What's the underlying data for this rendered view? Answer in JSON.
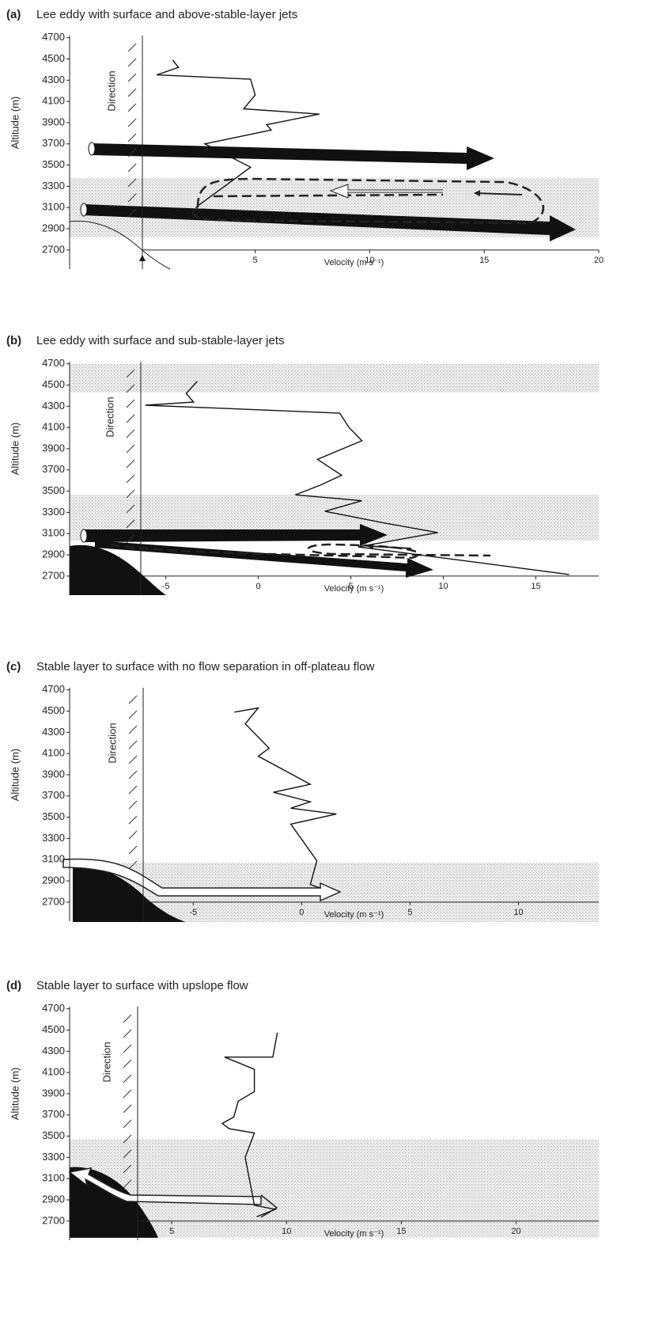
{
  "chart_data": [
    {
      "type": "line",
      "panel": "(a)",
      "title": "Lee eddy with surface and above-stable-layer jets",
      "y_label": "Altitude (m)",
      "x_label": "Velocity (m s⁻¹)",
      "annotation": "Direction",
      "ylim": [
        2520,
        4720
      ],
      "yticks": [
        2700,
        2900,
        3100,
        3300,
        3500,
        3700,
        3900,
        4100,
        4300,
        4500,
        4700
      ],
      "xlim": [
        -3.1,
        20
      ],
      "xticks": [
        5,
        10,
        15,
        20
      ],
      "series": [
        {
          "color": "#111111",
          "x": [
            1.4,
            1.65,
            0.7,
            4.8,
            5.0,
            4.5,
            7.8,
            5.5,
            5.7,
            2.8,
            4.8,
            2.4
          ],
          "values": [
            4490,
            4420,
            4350,
            4310,
            4160,
            4030,
            3980,
            3880,
            3830,
            3700,
            3480,
            3100
          ]
        }
      ]
    },
    {
      "type": "line",
      "panel": "(b)",
      "title": "Lee eddy with surface and sub-stable-layer jets",
      "y_label": "Altitude (m)",
      "x_label": "Velocity (m s⁻¹)",
      "annotation": "Direction",
      "ylim": [
        2520,
        4720
      ],
      "yticks": [
        2700,
        2900,
        3100,
        3300,
        3500,
        3700,
        3900,
        4100,
        4300,
        4500,
        4700
      ],
      "xlim": [
        -10.2,
        18.4
      ],
      "xticks": [
        -5,
        0,
        5,
        10,
        15
      ],
      "series": [
        {
          "color": "#111111",
          "x": [
            -3.3,
            -3.9,
            -3.5,
            -6.1,
            4.4,
            4.9,
            5.6,
            3.2,
            4.5,
            3.4,
            2.0,
            5.6,
            3.6,
            6.8,
            9.7,
            5.4,
            16.8
          ],
          "values": [
            4535,
            4420,
            4340,
            4310,
            4235,
            4100,
            3975,
            3800,
            3650,
            3560,
            3465,
            3410,
            3310,
            3200,
            3110,
            2975,
            2715
          ]
        }
      ]
    },
    {
      "type": "line",
      "panel": "(c)",
      "title": "Stable layer to surface with no flow separation in off-plateau flow",
      "y_label": "Altitude (m)",
      "x_label": "Velocity (m s⁻¹)",
      "annotation": "Direction",
      "ylim": [
        2520,
        4720
      ],
      "yticks": [
        2700,
        2900,
        3100,
        3300,
        3500,
        3700,
        3900,
        4100,
        4300,
        4500,
        4700
      ],
      "xlim": [
        -10.7,
        13.7
      ],
      "xticks": [
        -5,
        0,
        5,
        10
      ],
      "series": [
        {
          "color": "#111111",
          "x": [
            -3.1,
            -2.0,
            -2.6,
            -1.5,
            -2.0,
            0.4,
            -1.3,
            0.4,
            -0.5,
            1.6,
            -0.5,
            0.7,
            0.4,
            0.9
          ],
          "values": [
            4490,
            4530,
            4380,
            4150,
            4075,
            3810,
            3735,
            3645,
            3585,
            3530,
            3435,
            3090,
            2865,
            2830
          ]
        }
      ]
    },
    {
      "type": "line",
      "panel": "(d)",
      "title": "Stable layer to surface with upslope flow",
      "y_label": "Altitude (m)",
      "x_label": "Velocity (m s⁻¹)",
      "annotation": "Direction",
      "ylim": [
        2520,
        4720
      ],
      "yticks": [
        2700,
        2900,
        3100,
        3300,
        3500,
        3700,
        3900,
        4100,
        4300,
        4500,
        4700
      ],
      "xlim": [
        0.55,
        23.6
      ],
      "xticks": [
        5,
        10,
        15,
        20
      ],
      "series": [
        {
          "color": "#111111",
          "x": [
            9.6,
            9.4,
            7.3,
            8.6,
            8.6,
            7.9,
            7.7,
            7.2,
            7.5,
            8.6,
            8.2,
            8.6,
            9.5,
            8.7
          ],
          "values": [
            4475,
            4245,
            4245,
            4130,
            3920,
            3830,
            3680,
            3620,
            3570,
            3530,
            3300,
            2850,
            2810,
            2740
          ]
        }
      ]
    }
  ]
}
